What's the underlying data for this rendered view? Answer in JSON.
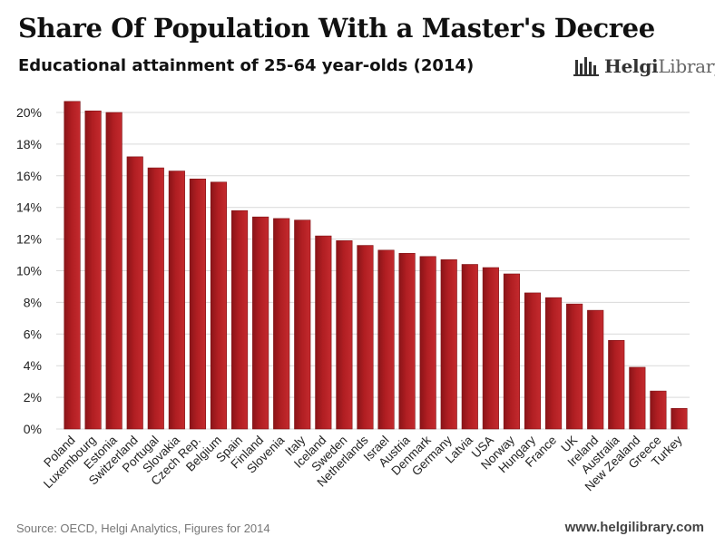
{
  "header": {
    "title": "Share Of Population With a Master's Decree",
    "subtitle": "Educational attainment of 25-64 year-olds (2014)"
  },
  "logo": {
    "name_bold": "Helgi",
    "name_light": "Library",
    "icon": "helgi-library-logo-icon"
  },
  "footer": {
    "source": "Source: OECD, Helgi Analytics, Figures for 2014",
    "site": "www.helgilibrary.com"
  },
  "colors": {
    "bar": "#b01e22",
    "bar_edge": "#7e1215",
    "grid": "#d9d9d9",
    "text": "#111111"
  },
  "chart_data": {
    "type": "bar",
    "title": "Share Of Population With a Master's Decree",
    "ylim": [
      0,
      20
    ],
    "yticks": [
      0,
      2,
      4,
      6,
      8,
      10,
      12,
      14,
      16,
      18,
      20
    ],
    "ytick_labels": [
      "0%",
      "2%",
      "4%",
      "6%",
      "8%",
      "10%",
      "12%",
      "14%",
      "16%",
      "18%",
      "20%"
    ],
    "grid": true,
    "categories": [
      "Poland",
      "Luxembourg",
      "Estonia",
      "Switzerland",
      "Portugal",
      "Slovakia",
      "Czech Rep.",
      "Belgium",
      "Spain",
      "Finland",
      "Slovenia",
      "Italy",
      "Iceland",
      "Sweden",
      "Netherlands",
      "Israel",
      "Austria",
      "Denmark",
      "Germany",
      "Latvia",
      "USA",
      "Norway",
      "Hungary",
      "France",
      "UK",
      "Ireland",
      "Australia",
      "New Zealand",
      "Greece",
      "Turkey"
    ],
    "values": [
      20.7,
      20.1,
      20.0,
      17.2,
      16.5,
      16.3,
      15.8,
      15.6,
      13.8,
      13.4,
      13.3,
      13.2,
      12.2,
      11.9,
      11.6,
      11.3,
      11.1,
      10.9,
      10.7,
      10.4,
      10.2,
      9.8,
      8.6,
      8.3,
      7.9,
      7.5,
      5.6,
      3.9,
      2.4,
      1.3
    ]
  }
}
